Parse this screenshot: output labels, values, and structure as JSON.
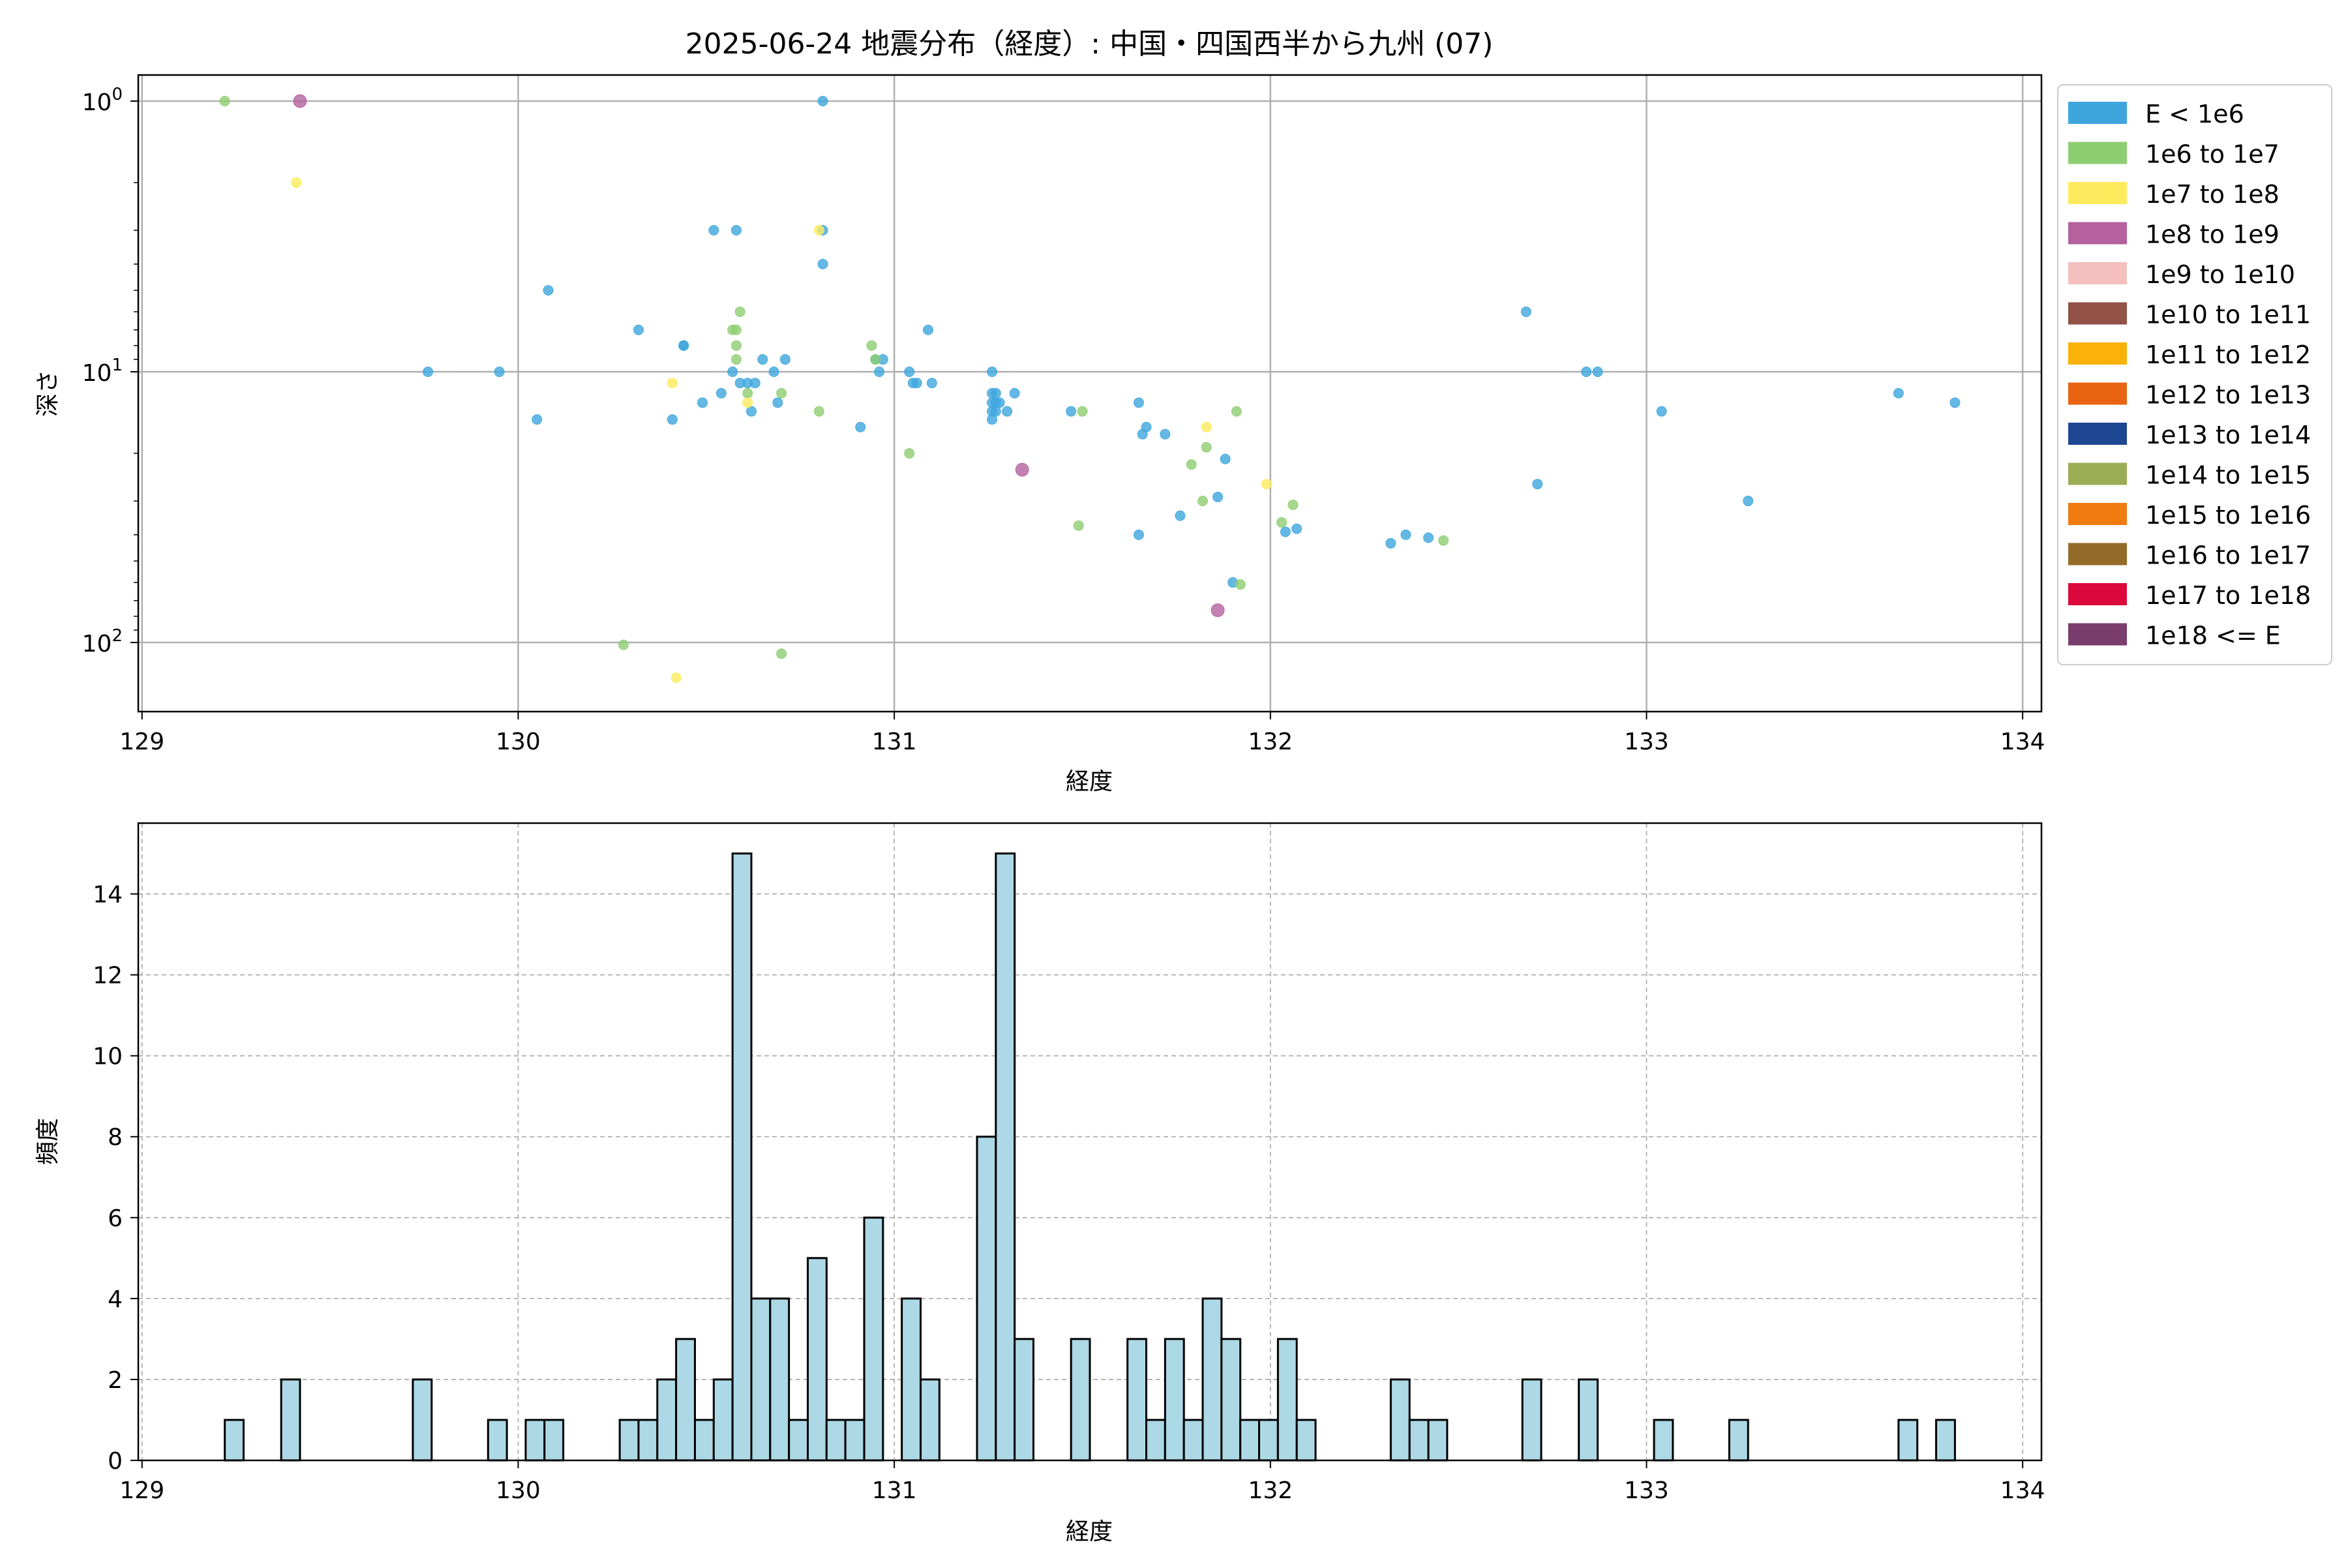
{
  "chart_data": [
    {
      "type": "scatter",
      "title": "2025-06-24 地震分布（経度）: 中国・四国西半から九州 (07)",
      "xlabel": "経度",
      "ylabel": "深さ",
      "xlim": [
        128.99,
        134.05
      ],
      "y_scale": "log",
      "y_inverted": true,
      "ylim": [
        1.0,
        180
      ],
      "x_ticks": [
        129,
        130,
        131,
        132,
        133,
        134
      ],
      "y_ticks": [
        {
          "value": 1,
          "base": "10",
          "exp": "0"
        },
        {
          "value": 10,
          "base": "10",
          "exp": "1"
        },
        {
          "value": 100,
          "base": "10",
          "exp": "2"
        }
      ],
      "grid": true,
      "legend_position": "outside-right",
      "legend": [
        {
          "label": "E < 1e6",
          "color": "#3ea6dd"
        },
        {
          "label": "1e6 to 1e7",
          "color": "#8ece72"
        },
        {
          "label": "1e7 to 1e8",
          "color": "#fdeb5e"
        },
        {
          "label": "1e8 to 1e9",
          "color": "#b4619e"
        },
        {
          "label": "1e9 to 1e10",
          "color": "#f4bfbd"
        },
        {
          "label": "1e10 to 1e11",
          "color": "#935248"
        },
        {
          "label": "1e11 to 1e12",
          "color": "#fab20b"
        },
        {
          "label": "1e12 to 1e13",
          "color": "#e96411"
        },
        {
          "label": "1e13 to 1e14",
          "color": "#1e4793"
        },
        {
          "label": "1e14 to 1e15",
          "color": "#9aad55"
        },
        {
          "label": "1e15 to 1e16",
          "color": "#ef7b11"
        },
        {
          "label": "1e16 to 1e17",
          "color": "#936a27"
        },
        {
          "label": "1e17 to 1e18",
          "color": "#dc0a3c"
        },
        {
          "label": "1e18 <= E",
          "color": "#7b3c6e"
        }
      ],
      "series": [
        {
          "label": "E < 1e6",
          "points": [
            [
              129.76,
              10.0
            ],
            [
              129.95,
              10.0
            ],
            [
              130.05,
              15.0
            ],
            [
              130.08,
              5.0
            ],
            [
              130.32,
              7.0
            ],
            [
              130.41,
              15.0
            ],
            [
              130.44,
              8.0
            ],
            [
              130.44,
              8.0
            ],
            [
              130.49,
              13.0
            ],
            [
              130.52,
              3.0
            ],
            [
              130.54,
              12.0
            ],
            [
              130.57,
              10.0
            ],
            [
              130.58,
              3.0
            ],
            [
              130.59,
              11.0
            ],
            [
              130.61,
              11.0
            ],
            [
              130.62,
              14.0
            ],
            [
              130.63,
              11.0
            ],
            [
              130.65,
              9.0
            ],
            [
              130.68,
              10.0
            ],
            [
              130.69,
              13.0
            ],
            [
              130.71,
              9.0
            ],
            [
              130.81,
              1.0
            ],
            [
              130.81,
              3.0
            ],
            [
              130.81,
              4.0
            ],
            [
              130.91,
              16.0
            ],
            [
              130.95,
              9.0
            ],
            [
              130.96,
              10.0
            ],
            [
              130.97,
              9.0
            ],
            [
              131.04,
              10.0
            ],
            [
              131.05,
              11.0
            ],
            [
              131.06,
              11.0
            ],
            [
              131.09,
              7.0
            ],
            [
              131.1,
              11.0
            ],
            [
              131.26,
              10.0
            ],
            [
              131.26,
              12.0
            ],
            [
              131.26,
              13.0
            ],
            [
              131.26,
              14.0
            ],
            [
              131.26,
              15.0
            ],
            [
              131.27,
              12.0
            ],
            [
              131.27,
              13.0
            ],
            [
              131.27,
              14.0
            ],
            [
              131.28,
              13.0
            ],
            [
              131.3,
              14.0
            ],
            [
              131.32,
              12.0
            ],
            [
              131.47,
              14.0
            ],
            [
              131.65,
              13.0
            ],
            [
              131.65,
              40.0
            ],
            [
              131.66,
              17.0
            ],
            [
              131.67,
              16.0
            ],
            [
              131.72,
              17.0
            ],
            [
              131.76,
              34.0
            ],
            [
              131.86,
              29.0
            ],
            [
              131.88,
              21.0
            ],
            [
              131.9,
              60.0
            ],
            [
              132.04,
              39.0
            ],
            [
              132.07,
              38.0
            ],
            [
              132.32,
              43.0
            ],
            [
              132.36,
              40.0
            ],
            [
              132.42,
              41.0
            ],
            [
              132.68,
              6.0
            ],
            [
              132.71,
              26.0
            ],
            [
              132.84,
              10.0
            ],
            [
              132.87,
              10.0
            ],
            [
              133.04,
              14.0
            ],
            [
              133.27,
              30.0
            ],
            [
              133.67,
              12.0
            ],
            [
              133.82,
              13.0
            ]
          ]
        },
        {
          "label": "1e6 to 1e7",
          "points": [
            [
              129.22,
              1.0
            ],
            [
              130.28,
              102.0
            ],
            [
              130.57,
              7.0
            ],
            [
              130.58,
              7.0
            ],
            [
              130.58,
              8.0
            ],
            [
              130.58,
              9.0
            ],
            [
              130.59,
              6.0
            ],
            [
              130.61,
              12.0
            ],
            [
              130.7,
              12.0
            ],
            [
              130.7,
              110.0
            ],
            [
              130.8,
              14.0
            ],
            [
              130.94,
              8.0
            ],
            [
              130.95,
              9.0
            ],
            [
              131.04,
              20.0
            ],
            [
              131.49,
              37.0
            ],
            [
              131.5,
              14.0
            ],
            [
              131.79,
              22.0
            ],
            [
              131.82,
              30.0
            ],
            [
              131.83,
              19.0
            ],
            [
              131.91,
              14.0
            ],
            [
              131.92,
              61.0
            ],
            [
              132.03,
              36.0
            ],
            [
              132.06,
              31.0
            ],
            [
              132.46,
              42.0
            ]
          ]
        },
        {
          "label": "1e7 to 1e8",
          "points": [
            [
              129.41,
              2.0
            ],
            [
              130.41,
              11.0
            ],
            [
              130.42,
              135.0
            ],
            [
              130.61,
              13.0
            ],
            [
              130.8,
              3.0
            ],
            [
              131.83,
              16.0
            ],
            [
              131.99,
              26.0
            ]
          ]
        },
        {
          "label": "1e8 to 1e9",
          "points": [
            [
              129.42,
              1.0
            ],
            [
              131.34,
              23.0
            ],
            [
              131.86,
              76.0
            ]
          ]
        }
      ]
    },
    {
      "type": "bar",
      "xlabel": "経度",
      "ylabel": "頻度",
      "xlim": [
        128.99,
        134.05
      ],
      "ylim": [
        0,
        15.75
      ],
      "x_ticks": [
        129,
        130,
        131,
        132,
        133,
        134
      ],
      "y_ticks": [
        0,
        2,
        4,
        6,
        8,
        10,
        12,
        14
      ],
      "bin_width": 0.05,
      "grid": "dashed",
      "bar_color": "#add8e6",
      "edge_color": "#000000",
      "bins": [
        [
          129.22,
          1
        ],
        [
          129.37,
          2
        ],
        [
          129.72,
          2
        ],
        [
          129.92,
          1
        ],
        [
          130.02,
          1
        ],
        [
          130.07,
          1
        ],
        [
          130.27,
          1
        ],
        [
          130.32,
          1
        ],
        [
          130.37,
          2
        ],
        [
          130.42,
          3
        ],
        [
          130.47,
          1
        ],
        [
          130.52,
          2
        ],
        [
          130.57,
          15
        ],
        [
          130.62,
          4
        ],
        [
          130.67,
          4
        ],
        [
          130.72,
          1
        ],
        [
          130.77,
          5
        ],
        [
          130.82,
          1
        ],
        [
          130.87,
          1
        ],
        [
          130.92,
          6
        ],
        [
          131.02,
          4
        ],
        [
          131.07,
          2
        ],
        [
          131.22,
          8
        ],
        [
          131.27,
          15
        ],
        [
          131.32,
          3
        ],
        [
          131.47,
          3
        ],
        [
          131.62,
          3
        ],
        [
          131.67,
          1
        ],
        [
          131.72,
          3
        ],
        [
          131.77,
          1
        ],
        [
          131.82,
          4
        ],
        [
          131.87,
          3
        ],
        [
          131.92,
          1
        ],
        [
          131.97,
          1
        ],
        [
          132.02,
          3
        ],
        [
          132.07,
          1
        ],
        [
          132.32,
          2
        ],
        [
          132.37,
          1
        ],
        [
          132.42,
          1
        ],
        [
          132.67,
          2
        ],
        [
          132.82,
          2
        ],
        [
          133.02,
          1
        ],
        [
          133.22,
          1
        ],
        [
          133.67,
          1
        ],
        [
          133.77,
          1
        ]
      ]
    }
  ]
}
